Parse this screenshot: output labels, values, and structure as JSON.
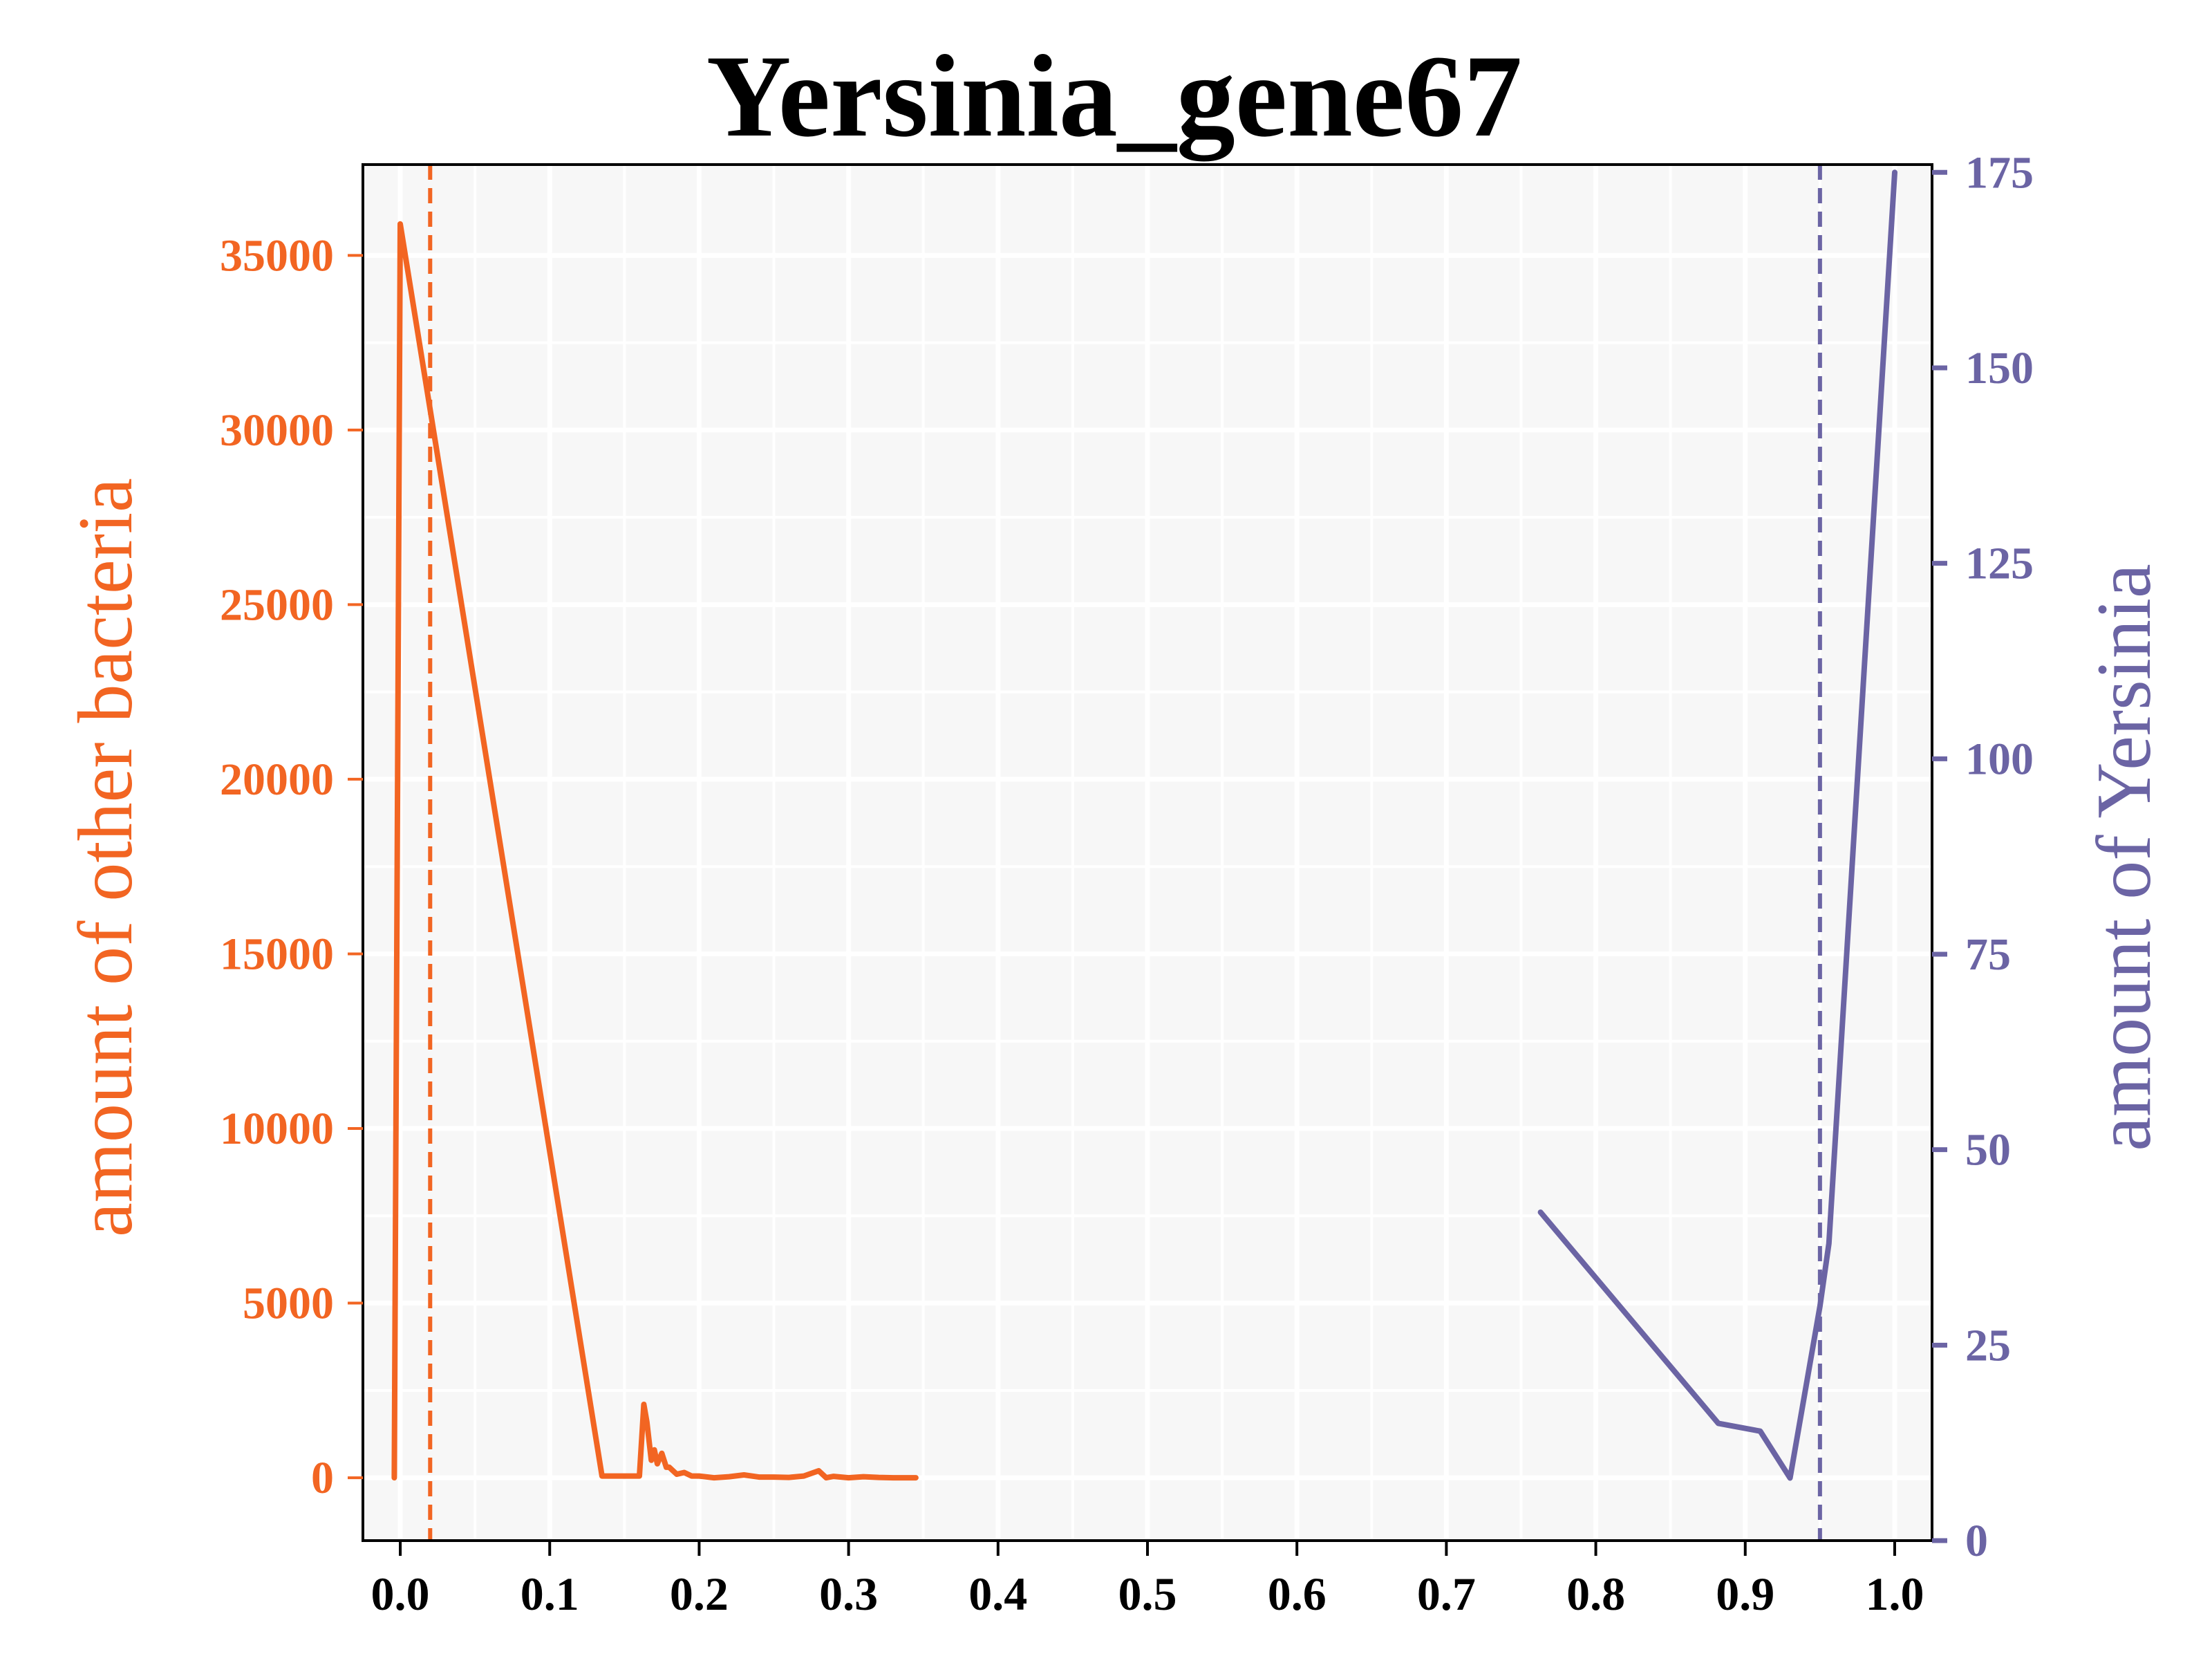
{
  "chart_data": {
    "type": "line",
    "title": "Yersinia_gene67",
    "xlabel": "",
    "xlim": [
      -0.025,
      1.025
    ],
    "xticks": [
      0.0,
      0.1,
      0.2,
      0.3,
      0.4,
      0.5,
      0.6,
      0.7,
      0.8,
      0.9,
      1.0
    ],
    "xtick_labels": [
      "0.0",
      "0.1",
      "0.2",
      "0.3",
      "0.4",
      "0.5",
      "0.6",
      "0.7",
      "0.8",
      "0.9",
      "1.0"
    ],
    "grid": true,
    "axes": {
      "left": {
        "label": "amount of other bacteria",
        "color": "#f26522",
        "ylim": [
          -1800,
          37600
        ],
        "ticks": [
          0,
          5000,
          10000,
          15000,
          20000,
          25000,
          30000,
          35000
        ],
        "tick_labels": [
          "0",
          "5000",
          "10000",
          "15000",
          "20000",
          "25000",
          "30000",
          "35000"
        ]
      },
      "right": {
        "label": "amount of Yersinia",
        "color": "#6b64a4",
        "ylim": [
          0,
          176
        ],
        "ticks": [
          0,
          25,
          50,
          75,
          100,
          125,
          150,
          175
        ],
        "tick_labels": [
          "0",
          "25",
          "50",
          "75",
          "100",
          "125",
          "150",
          "175"
        ]
      }
    },
    "series": [
      {
        "axis": "left",
        "color": "#f26522",
        "x": [
          -0.004,
          0.0,
          0.135,
          0.16,
          0.163,
          0.165,
          0.168,
          0.17,
          0.172,
          0.175,
          0.178,
          0.18,
          0.185,
          0.19,
          0.195,
          0.2,
          0.21,
          0.22,
          0.23,
          0.24,
          0.25,
          0.26,
          0.27,
          0.28,
          0.285,
          0.29,
          0.3,
          0.31,
          0.32,
          0.33,
          0.345
        ],
        "y": [
          0,
          35900,
          50,
          50,
          2100,
          1600,
          500,
          800,
          400,
          700,
          300,
          300,
          100,
          150,
          50,
          50,
          0,
          30,
          80,
          20,
          20,
          10,
          50,
          200,
          0,
          40,
          0,
          30,
          10,
          0,
          0
        ]
      },
      {
        "axis": "right",
        "color": "#6b64a4",
        "x": [
          0.763,
          0.882,
          0.91,
          0.93,
          0.95,
          0.956,
          1.0
        ],
        "y": [
          42,
          15,
          14,
          8,
          30,
          38,
          175
        ]
      }
    ],
    "vlines": [
      {
        "x": 0.02,
        "color": "#f26522",
        "style": "dashed"
      },
      {
        "x": 0.95,
        "color": "#6b64a4",
        "style": "dashed"
      }
    ]
  }
}
